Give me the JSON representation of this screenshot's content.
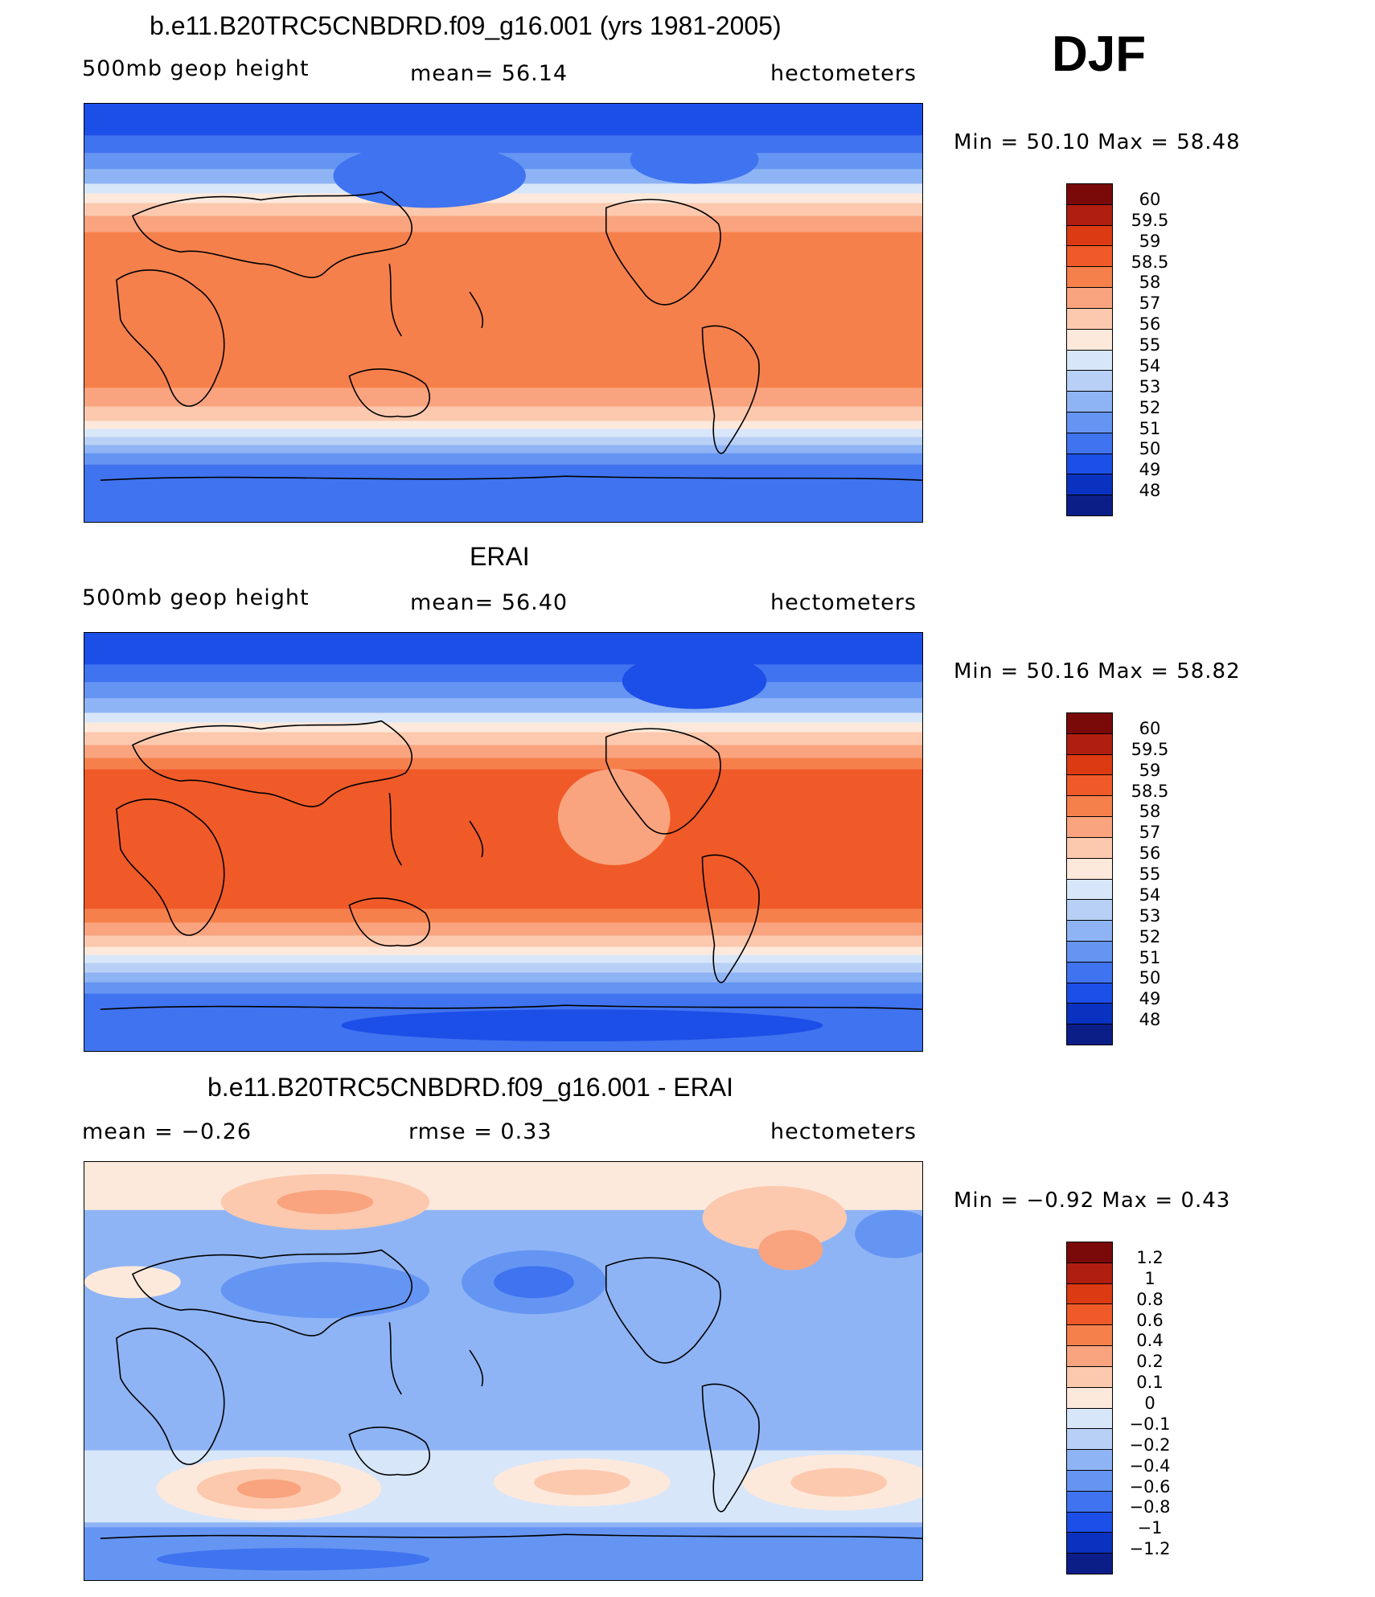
{
  "header": {
    "season": "DJF"
  },
  "panels": [
    {
      "title": "b.e11.B20TRC5CNBDRD.f09_g16.001 (yrs 1981-2005)",
      "left_label": "500mb  geop  height",
      "center_label": "mean=   56.14",
      "right_label": "hectometers",
      "minmax": "Min  =    50.10  Max  =    58.48",
      "field": "model",
      "colorbar": {
        "colors": [
          "#7a0a0a",
          "#b01e10",
          "#dc3a12",
          "#f05a28",
          "#f6804c",
          "#f9a47f",
          "#fcc9ae",
          "#fde9db",
          "#d8e6f9",
          "#b8d0f5",
          "#8fb4f5",
          "#6595f2",
          "#3f73ef",
          "#1c4ee8",
          "#0a32c0",
          "#0b1e87"
        ],
        "labels": [
          "60",
          "59.5",
          "59",
          "58.5",
          "58",
          "57",
          "56",
          "55",
          "54",
          "53",
          "52",
          "51",
          "50",
          "49",
          "48"
        ]
      }
    },
    {
      "title": "ERAI",
      "left_label": "500mb  geop  height",
      "center_label": "mean=   56.40",
      "right_label": "hectometers",
      "minmax": "Min  =    50.16  Max  =    58.82",
      "field": "obs",
      "colorbar": {
        "colors": [
          "#7a0a0a",
          "#b01e10",
          "#dc3a12",
          "#f05a28",
          "#f6804c",
          "#f9a47f",
          "#fcc9ae",
          "#fde9db",
          "#d8e6f9",
          "#b8d0f5",
          "#8fb4f5",
          "#6595f2",
          "#3f73ef",
          "#1c4ee8",
          "#0a32c0",
          "#0b1e87"
        ],
        "labels": [
          "60",
          "59.5",
          "59",
          "58.5",
          "58",
          "57",
          "56",
          "55",
          "54",
          "53",
          "52",
          "51",
          "50",
          "49",
          "48"
        ]
      }
    },
    {
      "title": "b.e11.B20TRC5CNBDRD.f09_g16.001 - ERAI",
      "left_label": "mean  =    −0.26",
      "center_label": "rmse  =     0.33",
      "right_label": "hectometers",
      "minmax": "Min  =    −0.92  Max  =     0.43",
      "field": "diff",
      "colorbar": {
        "colors": [
          "#7a0a0a",
          "#b01e10",
          "#dc3a12",
          "#f05a28",
          "#f6804c",
          "#f9a47f",
          "#fcc9ae",
          "#fde9db",
          "#d8e6f9",
          "#b8d0f5",
          "#8fb4f5",
          "#6595f2",
          "#3f73ef",
          "#1c4ee8",
          "#0a32c0",
          "#0b1e87"
        ],
        "labels": [
          "1.2",
          "1",
          "0.8",
          "0.6",
          "0.4",
          "0.2",
          "0.1",
          "0",
          "−0.1",
          "−0.2",
          "−0.4",
          "−0.6",
          "−0.8",
          "−1",
          "−1.2"
        ]
      }
    }
  ]
}
